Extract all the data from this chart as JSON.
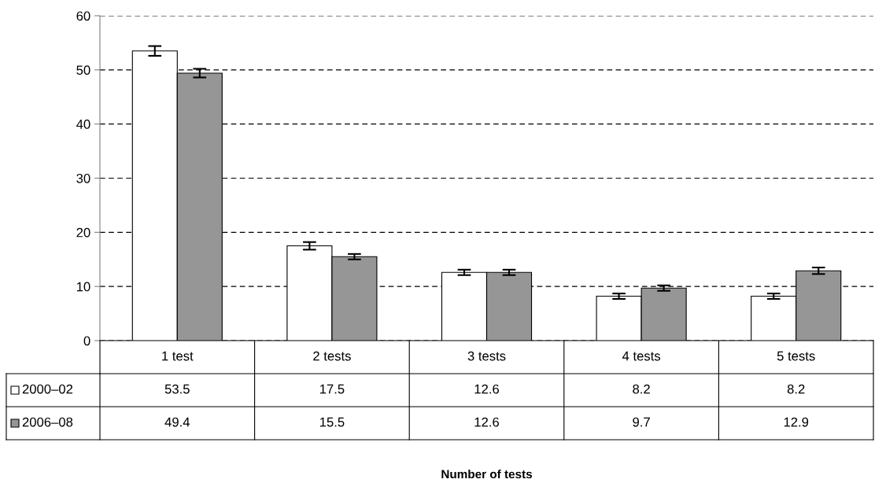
{
  "chart_data": {
    "type": "bar",
    "annotations": [
      "Number of tests"
    ],
    "legend": "bottom left",
    "categories": [
      "1 test",
      "2 tests",
      "3 tests",
      "4 tests",
      "5 tests"
    ],
    "series": [
      {
        "name": "2000–02",
        "color": "#ffffff",
        "values": [
          53.5,
          17.5,
          12.6,
          8.2,
          8.2
        ],
        "errors": [
          0.9,
          0.7,
          0.5,
          0.5,
          0.5
        ]
      },
      {
        "name": "2006–08",
        "color": "#969696",
        "values": [
          49.4,
          15.5,
          12.6,
          9.7,
          12.9
        ],
        "errors": [
          0.8,
          0.5,
          0.5,
          0.5,
          0.6
        ]
      }
    ],
    "ylim": [
      0,
      60
    ],
    "yticks": [
      0,
      10,
      20,
      30,
      40,
      50,
      60
    ],
    "grid": "y",
    "data_labels": true
  }
}
